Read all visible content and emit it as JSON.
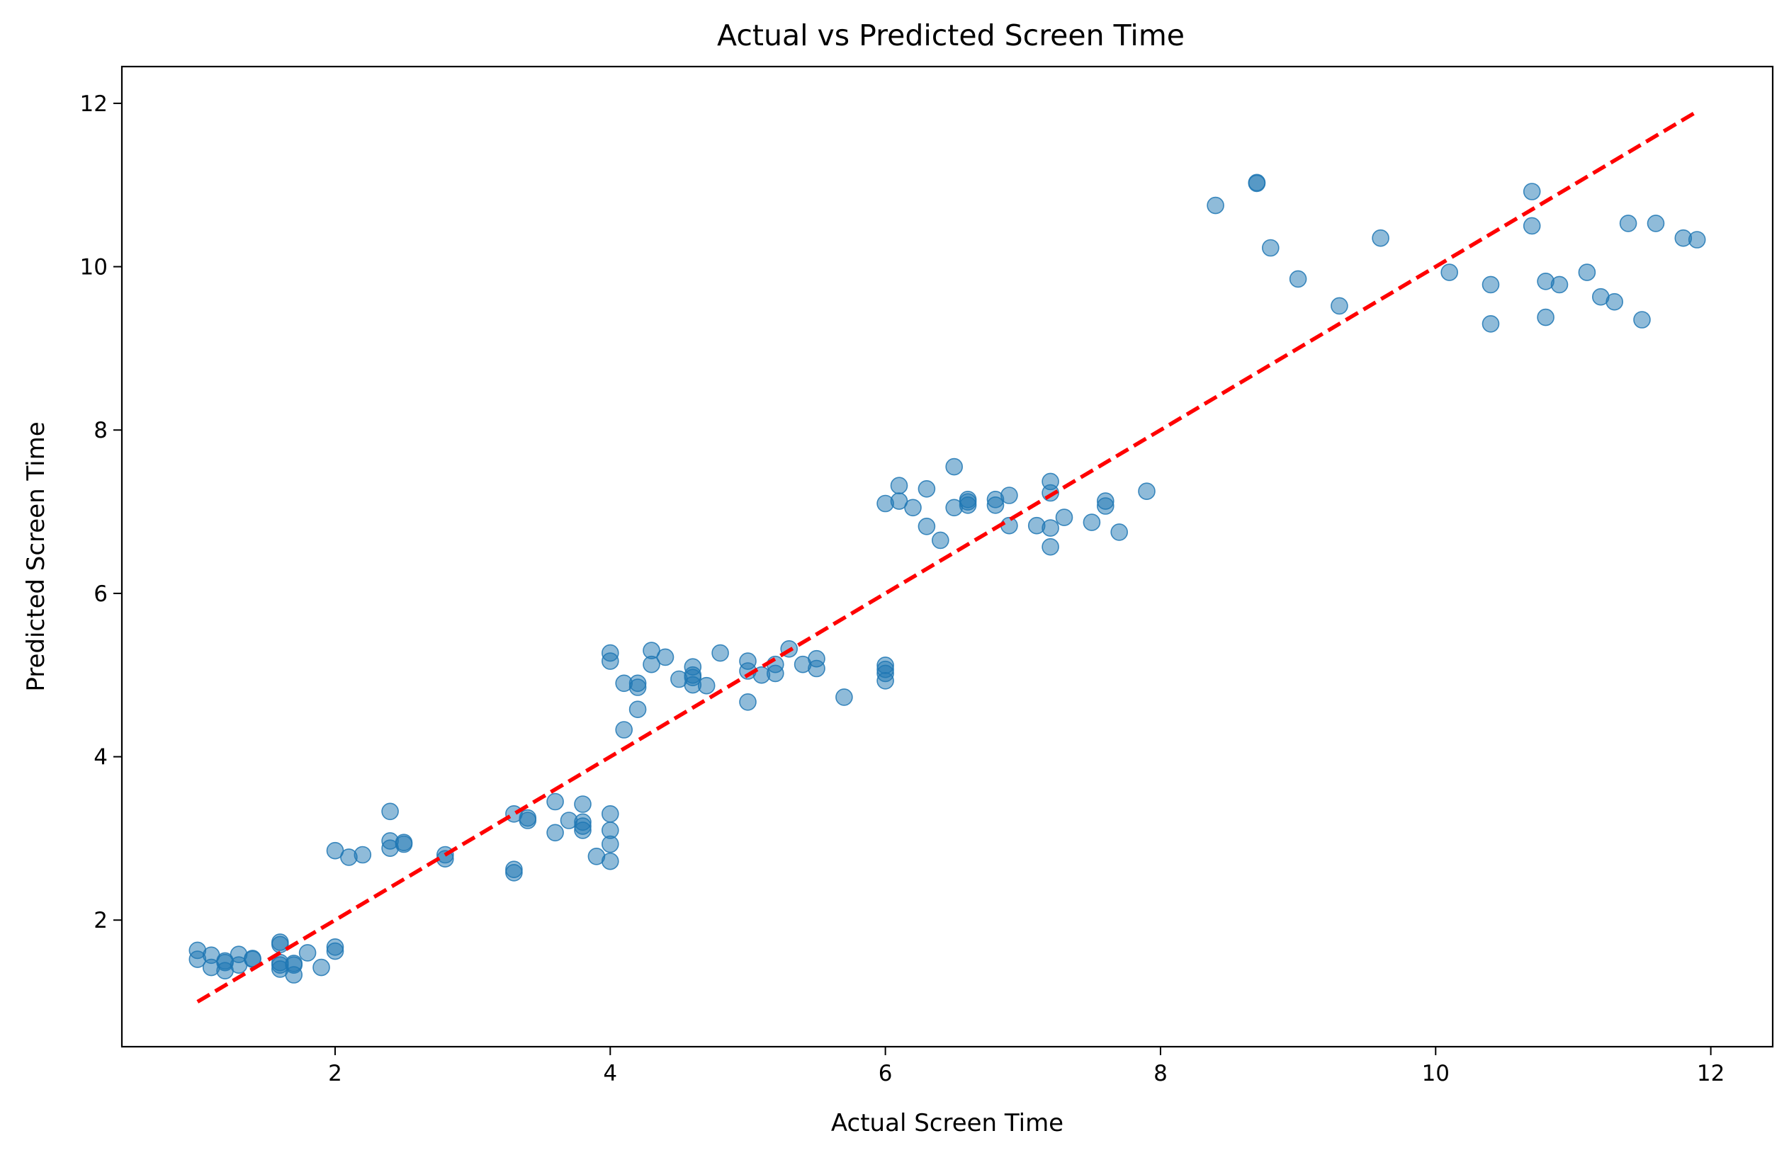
{
  "chart_data": {
    "type": "scatter",
    "title": "Actual vs Predicted Screen Time",
    "xlabel": "Actual Screen Time",
    "ylabel": "Predicted Screen Time",
    "xlim": [
      0.45,
      12.45
    ],
    "ylim": [
      0.45,
      12.45
    ],
    "xticks": [
      2,
      4,
      6,
      8,
      10,
      12
    ],
    "yticks": [
      2,
      4,
      6,
      8,
      10,
      12
    ],
    "grid": false,
    "point_color": "#1f77b4",
    "point_alpha": 0.5,
    "reference_line": {
      "x": [
        1.0,
        11.9
      ],
      "y": [
        1.0,
        11.9
      ],
      "color": "#ff0000",
      "style": "dashed"
    },
    "points": [
      [
        1.0,
        1.63
      ],
      [
        1.0,
        1.52
      ],
      [
        1.1,
        1.57
      ],
      [
        1.1,
        1.42
      ],
      [
        1.2,
        1.5
      ],
      [
        1.2,
        1.38
      ],
      [
        1.2,
        1.48
      ],
      [
        1.3,
        1.58
      ],
      [
        1.3,
        1.45
      ],
      [
        1.4,
        1.53
      ],
      [
        1.4,
        1.52
      ],
      [
        1.6,
        1.73
      ],
      [
        1.6,
        1.7
      ],
      [
        1.6,
        1.48
      ],
      [
        1.6,
        1.4
      ],
      [
        1.6,
        1.45
      ],
      [
        1.7,
        1.47
      ],
      [
        1.7,
        1.33
      ],
      [
        1.7,
        1.45
      ],
      [
        1.8,
        1.6
      ],
      [
        1.9,
        1.42
      ],
      [
        2.0,
        1.67
      ],
      [
        2.0,
        1.62
      ],
      [
        2.0,
        2.85
      ],
      [
        2.1,
        2.77
      ],
      [
        2.2,
        2.8
      ],
      [
        2.4,
        3.33
      ],
      [
        2.4,
        2.97
      ],
      [
        2.4,
        2.88
      ],
      [
        2.5,
        2.95
      ],
      [
        2.5,
        2.93
      ],
      [
        2.8,
        2.8
      ],
      [
        2.8,
        2.75
      ],
      [
        3.3,
        3.3
      ],
      [
        3.3,
        2.62
      ],
      [
        3.3,
        2.58
      ],
      [
        3.4,
        3.25
      ],
      [
        3.4,
        3.22
      ],
      [
        3.6,
        3.45
      ],
      [
        3.6,
        3.07
      ],
      [
        3.7,
        3.22
      ],
      [
        3.8,
        3.42
      ],
      [
        3.8,
        3.2
      ],
      [
        3.8,
        3.15
      ],
      [
        3.8,
        3.1
      ],
      [
        3.9,
        2.78
      ],
      [
        4.0,
        3.3
      ],
      [
        4.0,
        3.1
      ],
      [
        4.0,
        2.93
      ],
      [
        4.0,
        2.72
      ],
      [
        4.0,
        5.27
      ],
      [
        4.0,
        5.17
      ],
      [
        4.1,
        4.9
      ],
      [
        4.1,
        4.33
      ],
      [
        4.2,
        4.9
      ],
      [
        4.2,
        4.85
      ],
      [
        4.2,
        4.58
      ],
      [
        4.3,
        5.3
      ],
      [
        4.3,
        5.13
      ],
      [
        4.4,
        5.22
      ],
      [
        4.5,
        4.95
      ],
      [
        4.6,
        5.1
      ],
      [
        4.6,
        5.0
      ],
      [
        4.6,
        4.97
      ],
      [
        4.6,
        4.88
      ],
      [
        4.7,
        4.87
      ],
      [
        4.8,
        5.27
      ],
      [
        5.0,
        5.17
      ],
      [
        5.0,
        5.05
      ],
      [
        5.0,
        4.67
      ],
      [
        5.1,
        5.0
      ],
      [
        5.2,
        5.13
      ],
      [
        5.2,
        5.02
      ],
      [
        5.3,
        5.32
      ],
      [
        5.4,
        5.13
      ],
      [
        5.5,
        5.2
      ],
      [
        5.5,
        5.08
      ],
      [
        5.7,
        4.73
      ],
      [
        6.0,
        5.12
      ],
      [
        6.0,
        5.07
      ],
      [
        6.0,
        5.02
      ],
      [
        6.0,
        4.93
      ],
      [
        6.0,
        7.1
      ],
      [
        6.1,
        7.32
      ],
      [
        6.1,
        7.13
      ],
      [
        6.2,
        7.05
      ],
      [
        6.3,
        7.28
      ],
      [
        6.3,
        6.82
      ],
      [
        6.4,
        6.65
      ],
      [
        6.5,
        7.55
      ],
      [
        6.5,
        7.05
      ],
      [
        6.6,
        7.15
      ],
      [
        6.6,
        7.12
      ],
      [
        6.6,
        7.08
      ],
      [
        6.8,
        7.15
      ],
      [
        6.8,
        7.08
      ],
      [
        6.9,
        7.2
      ],
      [
        6.9,
        6.83
      ],
      [
        7.1,
        6.83
      ],
      [
        7.2,
        7.37
      ],
      [
        7.2,
        7.23
      ],
      [
        7.2,
        6.8
      ],
      [
        7.2,
        6.57
      ],
      [
        7.3,
        6.93
      ],
      [
        7.5,
        6.87
      ],
      [
        7.6,
        7.13
      ],
      [
        7.6,
        7.07
      ],
      [
        7.7,
        6.75
      ],
      [
        7.9,
        7.25
      ],
      [
        8.4,
        10.75
      ],
      [
        8.7,
        11.03
      ],
      [
        8.7,
        11.02
      ],
      [
        8.8,
        10.23
      ],
      [
        9.0,
        9.85
      ],
      [
        9.3,
        9.52
      ],
      [
        9.6,
        10.35
      ],
      [
        10.1,
        9.93
      ],
      [
        10.4,
        9.78
      ],
      [
        10.4,
        9.3
      ],
      [
        10.7,
        10.92
      ],
      [
        10.7,
        10.5
      ],
      [
        10.8,
        9.82
      ],
      [
        10.8,
        9.38
      ],
      [
        10.9,
        9.78
      ],
      [
        11.1,
        9.93
      ],
      [
        11.2,
        9.63
      ],
      [
        11.3,
        9.57
      ],
      [
        11.4,
        10.53
      ],
      [
        11.5,
        9.35
      ],
      [
        11.6,
        10.53
      ],
      [
        11.8,
        10.35
      ],
      [
        11.9,
        10.33
      ]
    ]
  }
}
